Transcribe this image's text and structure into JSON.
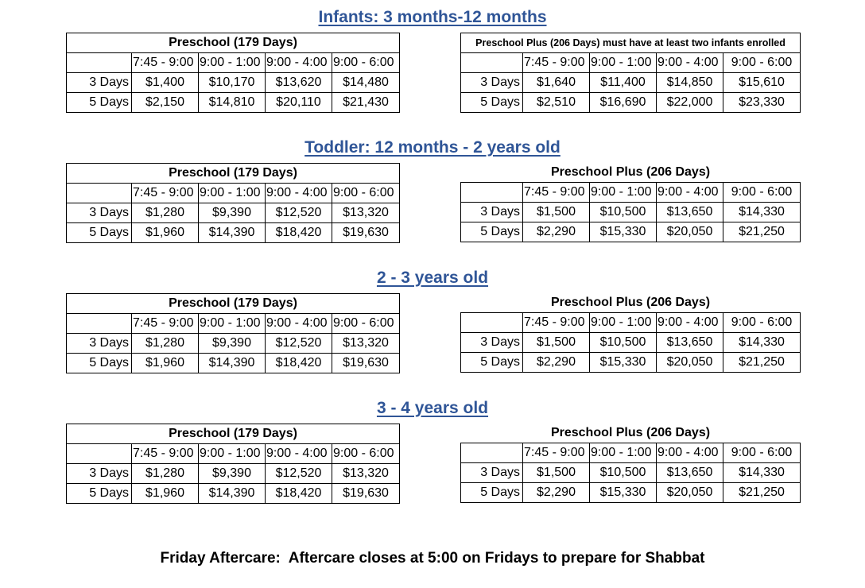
{
  "sections": [
    {
      "title": "Infants: 3 months-12 months",
      "left": {
        "heading": "Preschool (179 Days)",
        "times": [
          "7:45 - 9:00",
          "9:00 - 1:00",
          "9:00 - 4:00",
          "9:00 - 6:00"
        ],
        "rows": [
          {
            "label": "3 Days",
            "values": [
              "$1,400",
              "$10,170",
              "$13,620",
              "$14,480"
            ]
          },
          {
            "label": "5 Days",
            "values": [
              "$2,150",
              "$14,810",
              "$20,110",
              "$21,430"
            ]
          }
        ]
      },
      "right": {
        "heading": "Preschool Plus (206 Days) must have at least two infants enrolled",
        "times": [
          "7:45 - 9:00",
          "9:00 - 1:00",
          "9:00 - 4:00",
          "9:00 - 6:00"
        ],
        "rows": [
          {
            "label": "3 Days",
            "values": [
              "$1,640",
              "$11,400",
              "$14,850",
              "$15,610"
            ]
          },
          {
            "label": "5 Days",
            "values": [
              "$2,510",
              "$16,690",
              "$22,000",
              "$23,330"
            ]
          }
        ]
      }
    },
    {
      "title": "Toddler: 12 months - 2 years old",
      "left": {
        "heading": "Preschool (179 Days)",
        "times": [
          "7:45 - 9:00",
          "9:00 - 1:00",
          "9:00 - 4:00",
          "9:00 - 6:00"
        ],
        "rows": [
          {
            "label": "3 Days",
            "values": [
              "$1,280",
              "$9,390",
              "$12,520",
              "$13,320"
            ]
          },
          {
            "label": "5 Days",
            "values": [
              "$1,960",
              "$14,390",
              "$18,420",
              "$19,630"
            ]
          }
        ]
      },
      "right": {
        "heading": "Preschool Plus (206 Days)",
        "times": [
          "7:45 - 9:00",
          "9:00 - 1:00",
          "9:00 - 4:00",
          "9:00 - 6:00"
        ],
        "rows": [
          {
            "label": "3 Days",
            "values": [
              "$1,500",
              "$10,500",
              "$13,650",
              "$14,330"
            ]
          },
          {
            "label": "5 Days",
            "values": [
              "$2,290",
              "$15,330",
              "$20,050",
              "$21,250"
            ]
          }
        ]
      }
    },
    {
      "title": "2 - 3 years old",
      "left": {
        "heading": "Preschool (179 Days)",
        "times": [
          "7:45 - 9:00",
          "9:00 - 1:00",
          "9:00 - 4:00",
          "9:00 - 6:00"
        ],
        "rows": [
          {
            "label": "3 Days",
            "values": [
              "$1,280",
              "$9,390",
              "$12,520",
              "$13,320"
            ]
          },
          {
            "label": "5 Days",
            "values": [
              "$1,960",
              "$14,390",
              "$18,420",
              "$19,630"
            ]
          }
        ]
      },
      "right": {
        "heading": "Preschool Plus (206 Days)",
        "times": [
          "7:45 - 9:00",
          "9:00 - 1:00",
          "9:00 - 4:00",
          "9:00 - 6:00"
        ],
        "rows": [
          {
            "label": "3 Days",
            "values": [
              "$1,500",
              "$10,500",
              "$13,650",
              "$14,330"
            ]
          },
          {
            "label": "5 Days",
            "values": [
              "$2,290",
              "$15,330",
              "$20,050",
              "$21,250"
            ]
          }
        ]
      }
    },
    {
      "title": "3 - 4 years old",
      "left": {
        "heading": "Preschool (179 Days)",
        "times": [
          "7:45 - 9:00",
          "9:00 - 1:00",
          "9:00 - 4:00",
          "9:00 - 6:00"
        ],
        "rows": [
          {
            "label": "3 Days",
            "values": [
              "$1,280",
              "$9,390",
              "$12,520",
              "$13,320"
            ]
          },
          {
            "label": "5 Days",
            "values": [
              "$1,960",
              "$14,390",
              "$18,420",
              "$19,630"
            ]
          }
        ]
      },
      "right": {
        "heading": "Preschool Plus (206 Days)",
        "times": [
          "7:45 - 9:00",
          "9:00 - 1:00",
          "9:00 - 4:00",
          "9:00 - 6:00"
        ],
        "rows": [
          {
            "label": "3 Days",
            "values": [
              "$1,500",
              "$10,500",
              "$13,650",
              "$14,330"
            ]
          },
          {
            "label": "5 Days",
            "values": [
              "$2,290",
              "$15,330",
              "$20,050",
              "$21,250"
            ]
          }
        ]
      }
    }
  ],
  "footer": "Friday Aftercare:  Aftercare closes at 5:00 on Fridays to prepare for Shabbat"
}
